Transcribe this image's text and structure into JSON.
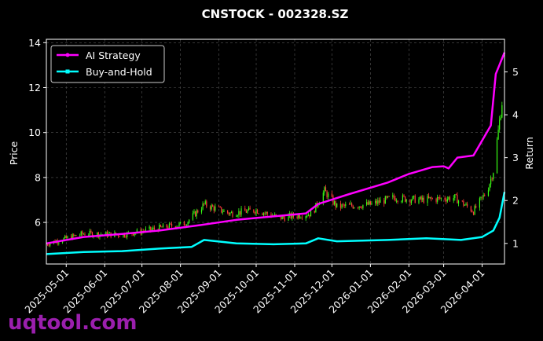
{
  "chart_data": {
    "type": "line",
    "title": "CNSTOCK - 002328.SZ",
    "ylabel": "Price",
    "y2label": "Return",
    "ylim": [
      4.15,
      14.15
    ],
    "y2lim": [
      0.52,
      5.76
    ],
    "xlim": [
      "2025-04-15",
      "2026-04-19"
    ],
    "yticks": [
      6,
      8,
      10,
      12,
      14
    ],
    "y2ticks": [
      1,
      2,
      3,
      4,
      5
    ],
    "xticks": [
      "2025-05-01",
      "2025-06-01",
      "2025-07-01",
      "2025-08-01",
      "2025-09-01",
      "2025-10-01",
      "2025-11-01",
      "2025-12-01",
      "2026-01-01",
      "2026-02-01",
      "2026-03-01",
      "2026-04-01"
    ],
    "grid": true,
    "legend_position": "top-left",
    "up_color": "#39ff14",
    "down_color": "#ff3b3b",
    "candlestick_close_points": [
      {
        "x": "2025-04-15",
        "close": 5.05
      },
      {
        "x": "2025-05-15",
        "close": 5.5
      },
      {
        "x": "2025-06-15",
        "close": 5.45
      },
      {
        "x": "2025-07-15",
        "close": 5.75
      },
      {
        "x": "2025-08-05",
        "close": 5.95
      },
      {
        "x": "2025-08-20",
        "close": 6.8
      },
      {
        "x": "2025-09-10",
        "close": 6.4
      },
      {
        "x": "2025-10-01",
        "close": 6.55
      },
      {
        "x": "2025-10-20",
        "close": 6.2
      },
      {
        "x": "2025-11-15",
        "close": 6.4
      },
      {
        "x": "2025-11-25",
        "close": 7.4
      },
      {
        "x": "2025-12-05",
        "close": 6.7
      },
      {
        "x": "2026-01-01",
        "close": 6.8
      },
      {
        "x": "2026-01-20",
        "close": 7.1
      },
      {
        "x": "2026-02-10",
        "close": 7.0
      },
      {
        "x": "2026-03-10",
        "close": 7.1
      },
      {
        "x": "2026-03-25",
        "close": 6.5
      },
      {
        "x": "2026-04-05",
        "close": 7.4
      },
      {
        "x": "2026-04-10",
        "close": 8.3
      },
      {
        "x": "2026-04-15",
        "close": 10.5
      },
      {
        "x": "2026-04-19",
        "close": 12.2
      }
    ],
    "series": [
      {
        "name": "AI Strategy",
        "color": "#ff00ff",
        "axis": "right",
        "points": [
          {
            "x": "2025-04-15",
            "y": 1.0
          },
          {
            "x": "2025-05-15",
            "y": 1.15
          },
          {
            "x": "2025-06-15",
            "y": 1.22
          },
          {
            "x": "2025-07-15",
            "y": 1.3
          },
          {
            "x": "2025-08-15",
            "y": 1.42
          },
          {
            "x": "2025-09-15",
            "y": 1.55
          },
          {
            "x": "2025-10-15",
            "y": 1.63
          },
          {
            "x": "2025-11-10",
            "y": 1.7
          },
          {
            "x": "2025-11-20",
            "y": 1.92
          },
          {
            "x": "2025-12-15",
            "y": 2.15
          },
          {
            "x": "2026-01-15",
            "y": 2.42
          },
          {
            "x": "2026-02-01",
            "y": 2.62
          },
          {
            "x": "2026-02-20",
            "y": 2.78
          },
          {
            "x": "2026-03-01",
            "y": 2.8
          },
          {
            "x": "2026-03-05",
            "y": 2.75
          },
          {
            "x": "2026-03-12",
            "y": 3.0
          },
          {
            "x": "2026-03-25",
            "y": 3.05
          },
          {
            "x": "2026-04-01",
            "y": 3.4
          },
          {
            "x": "2026-04-08",
            "y": 3.75
          },
          {
            "x": "2026-04-12",
            "y": 4.95
          },
          {
            "x": "2026-04-19",
            "y": 5.45
          }
        ]
      },
      {
        "name": "Buy-and-Hold",
        "color": "#00ffff",
        "axis": "right",
        "points": [
          {
            "x": "2025-04-15",
            "y": 0.75
          },
          {
            "x": "2025-05-15",
            "y": 0.8
          },
          {
            "x": "2025-06-15",
            "y": 0.82
          },
          {
            "x": "2025-07-15",
            "y": 0.88
          },
          {
            "x": "2025-08-10",
            "y": 0.92
          },
          {
            "x": "2025-08-20",
            "y": 1.08
          },
          {
            "x": "2025-09-15",
            "y": 1.0
          },
          {
            "x": "2025-10-15",
            "y": 0.98
          },
          {
            "x": "2025-11-10",
            "y": 1.0
          },
          {
            "x": "2025-11-20",
            "y": 1.12
          },
          {
            "x": "2025-12-05",
            "y": 1.05
          },
          {
            "x": "2026-01-15",
            "y": 1.08
          },
          {
            "x": "2026-02-15",
            "y": 1.12
          },
          {
            "x": "2026-03-15",
            "y": 1.08
          },
          {
            "x": "2026-04-01",
            "y": 1.15
          },
          {
            "x": "2026-04-10",
            "y": 1.3
          },
          {
            "x": "2026-04-15",
            "y": 1.6
          },
          {
            "x": "2026-04-19",
            "y": 2.2
          }
        ]
      }
    ]
  },
  "watermark": "uqtool.com"
}
